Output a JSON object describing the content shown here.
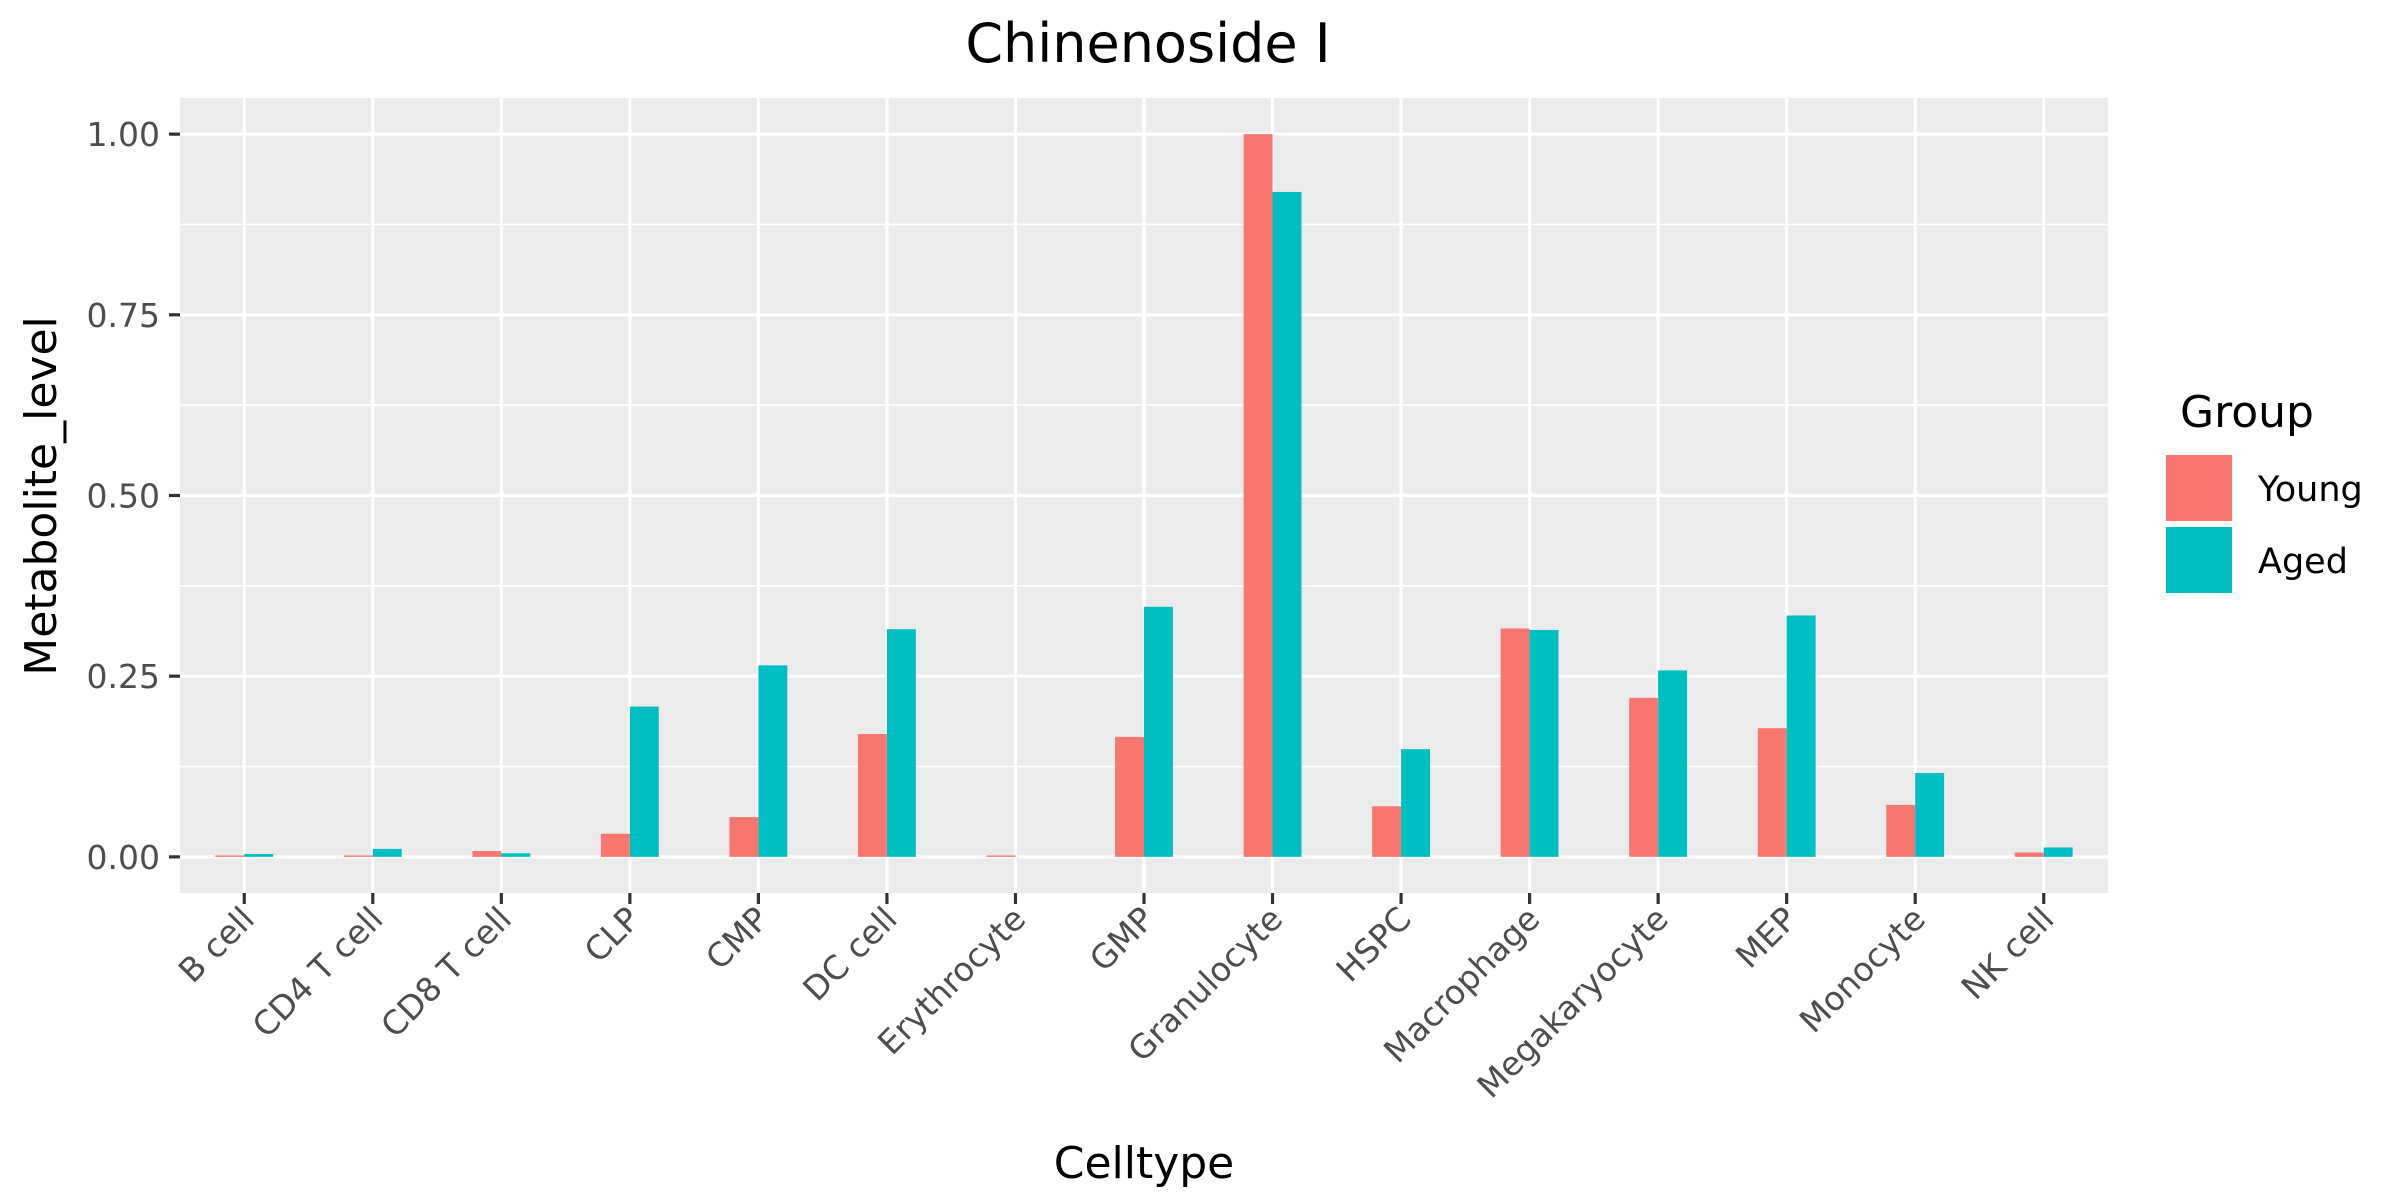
{
  "chart_data": {
    "type": "bar",
    "title": "Chinenoside I",
    "xlabel": "Celltype",
    "ylabel": "Metabolite_level",
    "categories": [
      "B cell",
      "CD4 T cell",
      "CD8 T cell",
      "CLP",
      "CMP",
      "DC cell",
      "Erythrocyte",
      "GMP",
      "Granulocyte",
      "HSPC",
      "Macrophage",
      "Megakaryocyte",
      "MEP",
      "Monocyte",
      "NK cell"
    ],
    "series": [
      {
        "name": "Young",
        "color": "#F8766D",
        "values": [
          0.002,
          0.002,
          0.008,
          0.032,
          0.055,
          0.17,
          0.002,
          0.166,
          1.0,
          0.07,
          0.316,
          0.22,
          0.178,
          0.072,
          0.006
        ]
      },
      {
        "name": "Aged",
        "color": "#00BFC4",
        "values": [
          0.004,
          0.011,
          0.005,
          0.208,
          0.265,
          0.315,
          0.0,
          0.346,
          0.92,
          0.149,
          0.314,
          0.258,
          0.334,
          0.116,
          0.013
        ]
      }
    ],
    "ylim": [
      -0.05,
      1.05
    ],
    "yticks": [
      0.0,
      0.25,
      0.5,
      0.75,
      1.0
    ],
    "ytick_labels": [
      "0.00",
      "0.25",
      "0.50",
      "0.75",
      "1.00"
    ],
    "grid": true,
    "legend": {
      "title": "Group",
      "position": "right"
    }
  }
}
